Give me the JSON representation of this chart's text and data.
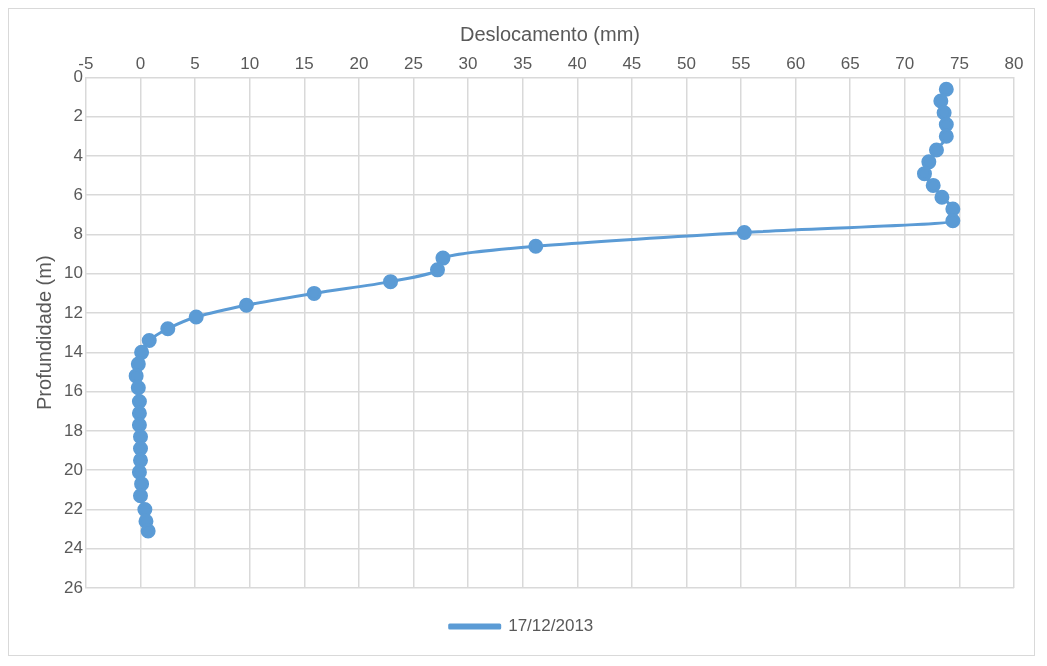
{
  "chart_data": {
    "type": "line",
    "xlabel": "Deslocamento (mm)",
    "ylabel": "Profundidade (m)",
    "xlim": [
      -5,
      80
    ],
    "xticks": [
      -5,
      0,
      5,
      10,
      15,
      20,
      25,
      30,
      35,
      40,
      45,
      50,
      55,
      60,
      65,
      70,
      75,
      80
    ],
    "ylim": [
      26,
      0
    ],
    "yticks": [
      0,
      2,
      4,
      6,
      8,
      10,
      12,
      14,
      16,
      18,
      20,
      22,
      24,
      26
    ],
    "grid": true,
    "legend": "bottom",
    "marker": "circle",
    "line_style": "solid",
    "series": [
      {
        "name": "17/12/2013",
        "color": "#5b9bd5",
        "x": [
          73.8,
          73.3,
          73.6,
          73.8,
          73.8,
          72.9,
          72.2,
          71.8,
          72.6,
          73.4,
          74.4,
          74.4,
          55.3,
          36.2,
          27.7,
          27.2,
          22.9,
          15.9,
          9.7,
          5.1,
          2.5,
          0.8,
          0.1,
          -0.2,
          -0.4,
          -0.2,
          -0.1,
          -0.1,
          -0.1,
          0,
          0,
          0,
          -0.1,
          0.1,
          0,
          0.4,
          0.5,
          0.7
        ],
        "values": [
          0.6,
          1.2,
          1.8,
          2.4,
          3.0,
          3.7,
          4.3,
          4.9,
          5.5,
          6.1,
          6.7,
          7.3,
          7.9,
          8.6,
          9.2,
          9.8,
          10.4,
          11.0,
          11.6,
          12.2,
          12.8,
          13.4,
          14.0,
          14.6,
          15.2,
          15.8,
          16.5,
          17.1,
          17.7,
          18.3,
          18.9,
          19.5,
          20.1,
          20.7,
          21.3,
          22.0,
          22.6,
          23.1
        ]
      }
    ]
  }
}
